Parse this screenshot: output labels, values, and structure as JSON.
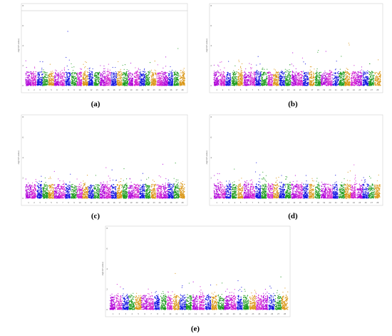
{
  "figure": {
    "captions": [
      "(a)",
      "(b)",
      "(c)",
      "(d)",
      "(e)"
    ]
  },
  "colors": {
    "purple": "#b000d8",
    "magenta": "#d11fd1",
    "blue": "#1010e0",
    "green": "#1a9a1a",
    "orange": "#d99410"
  },
  "chart_data": [
    {
      "panel": "a",
      "type": "scatter",
      "subtype": "manhattan",
      "ylabel": "-log10(P-value)",
      "ylim": [
        0,
        8
      ],
      "y_ticks": [
        "0",
        "2",
        "4",
        "6",
        "8"
      ],
      "chromosomes": [
        "1",
        "2",
        "3",
        "4",
        "5",
        "6",
        "7",
        "8",
        "9",
        "10",
        "11",
        "12",
        "13",
        "14",
        "15",
        "16",
        "17",
        "18",
        "19",
        "20",
        "21",
        "22",
        "23",
        "24",
        "25",
        "26",
        "27",
        "28"
      ],
      "threshold_line": 7.5,
      "grid": false
    },
    {
      "panel": "b",
      "type": "scatter",
      "subtype": "manhattan",
      "ylabel": "-log10(P-value)",
      "ylim": [
        0,
        8
      ],
      "y_ticks": [
        "0",
        "2",
        "4",
        "6",
        "8"
      ],
      "chromosomes": [
        "1",
        "2",
        "3",
        "4",
        "5",
        "6",
        "7",
        "8",
        "9",
        "10",
        "11",
        "12",
        "13",
        "14",
        "15",
        "16",
        "17",
        "18",
        "19",
        "20",
        "21",
        "22",
        "23",
        "24",
        "25",
        "26",
        "27",
        "28"
      ],
      "grid": false
    },
    {
      "panel": "c",
      "type": "scatter",
      "subtype": "manhattan",
      "ylabel": "-log10(P-value)",
      "ylim": [
        0,
        8
      ],
      "y_ticks": [
        "0",
        "2",
        "4",
        "6",
        "8"
      ],
      "chromosomes": [
        "1",
        "2",
        "3",
        "4",
        "5",
        "6",
        "7",
        "8",
        "9",
        "10",
        "11",
        "12",
        "13",
        "14",
        "15",
        "16",
        "17",
        "18",
        "19",
        "20",
        "21",
        "22",
        "23",
        "24",
        "25",
        "26",
        "27",
        "28"
      ],
      "grid": false
    },
    {
      "panel": "d",
      "type": "scatter",
      "subtype": "manhattan",
      "ylabel": "-log10(P-value)",
      "ylim": [
        0,
        8
      ],
      "y_ticks": [
        "0",
        "2",
        "4",
        "6",
        "8"
      ],
      "chromosomes": [
        "1",
        "2",
        "3",
        "4",
        "5",
        "6",
        "7",
        "8",
        "9",
        "10",
        "11",
        "12",
        "13",
        "14",
        "15",
        "16",
        "17",
        "18",
        "19",
        "20",
        "21",
        "22",
        "23",
        "24",
        "25",
        "26",
        "27",
        "28"
      ],
      "grid": false
    },
    {
      "panel": "e",
      "type": "scatter",
      "subtype": "manhattan",
      "ylabel": "-log10(P-value)",
      "ylim": [
        0,
        8
      ],
      "y_ticks": [
        "0",
        "2",
        "4",
        "6",
        "8"
      ],
      "chromosomes": [
        "1",
        "2",
        "3",
        "4",
        "5",
        "6",
        "7",
        "8",
        "9",
        "10",
        "11",
        "12",
        "13",
        "14",
        "15",
        "16",
        "17",
        "18",
        "19",
        "20",
        "21",
        "22",
        "23",
        "24",
        "25",
        "26",
        "27",
        "28"
      ],
      "grid": false
    }
  ]
}
